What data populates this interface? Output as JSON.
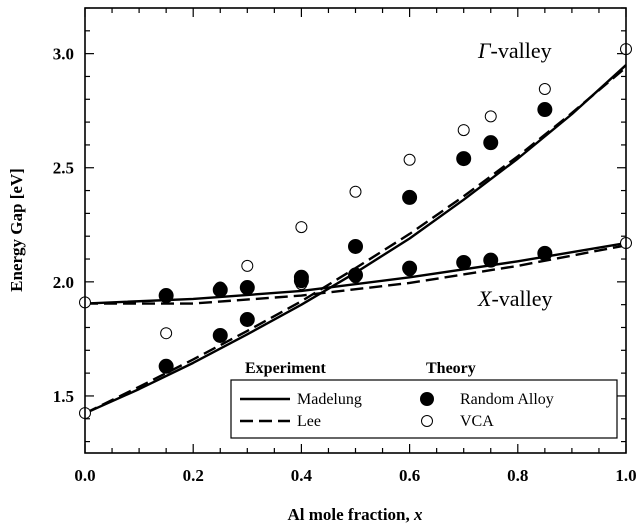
{
  "chart_data": {
    "type": "scatter",
    "xlabel_main": "Al mole fraction, ",
    "xlabel_var": "x",
    "ylabel": "Energy Gap [eV]",
    "xlim": [
      0.0,
      1.0
    ],
    "ylim": [
      1.25,
      3.2
    ],
    "xticks": [
      "0.0",
      "0.2",
      "0.4",
      "0.6",
      "0.8",
      "1.0"
    ],
    "yticks": [
      "1.5",
      "2.0",
      "2.5",
      "3.0"
    ],
    "annotations": {
      "gamma_symbol": "Γ",
      "gamma_text": "-valley",
      "x_symbol": "X",
      "x_text": "-valley"
    },
    "legend": {
      "experiment_header": "Experiment",
      "theory_header": "Theory",
      "madelung": "Madelung",
      "lee": "Lee",
      "random_alloy": "Random Alloy",
      "vca": "VCA"
    },
    "series": [
      {
        "name": "Madelung",
        "style": "solid",
        "curves": [
          {
            "valley": "Gamma",
            "x": [
              0,
              0.1,
              0.2,
              0.3,
              0.4,
              0.5,
              0.6,
              0.7,
              0.8,
              0.9,
              1.0
            ],
            "y": [
              1.424,
              1.53,
              1.645,
              1.77,
              1.9,
              2.04,
              2.19,
              2.36,
              2.54,
              2.735,
              2.95
            ]
          },
          {
            "valley": "X",
            "x": [
              0,
              0.2,
              0.4,
              0.6,
              0.8,
              1.0
            ],
            "y": [
              1.905,
              1.925,
              1.96,
              2.02,
              2.09,
              2.17
            ]
          }
        ]
      },
      {
        "name": "Lee",
        "style": "dashed",
        "curves": [
          {
            "valley": "Gamma",
            "x": [
              0,
              0.1,
              0.2,
              0.3,
              0.4,
              0.5,
              0.6,
              0.7,
              0.8,
              0.9,
              1.0
            ],
            "y": [
              1.424,
              1.54,
              1.66,
              1.785,
              1.915,
              2.06,
              2.21,
              2.375,
              2.55,
              2.74,
              2.94
            ]
          },
          {
            "valley": "X",
            "x": [
              0,
              0.2,
              0.4,
              0.6,
              0.8,
              1.0
            ],
            "y": [
              1.905,
              1.905,
              1.94,
              1.995,
              2.07,
              2.16
            ]
          }
        ]
      },
      {
        "name": "Random Alloy",
        "marker": "filled-circle",
        "points": [
          {
            "x": 0.15,
            "y": 1.63
          },
          {
            "x": 0.25,
            "y": 1.765
          },
          {
            "x": 0.3,
            "y": 1.835
          },
          {
            "x": 0.4,
            "y": 2.02
          },
          {
            "x": 0.5,
            "y": 2.155
          },
          {
            "x": 0.6,
            "y": 2.37
          },
          {
            "x": 0.7,
            "y": 2.54
          },
          {
            "x": 0.75,
            "y": 2.61
          },
          {
            "x": 0.85,
            "y": 2.755
          },
          {
            "x": 0.15,
            "y": 1.94
          },
          {
            "x": 0.25,
            "y": 1.965
          },
          {
            "x": 0.3,
            "y": 1.975
          },
          {
            "x": 0.4,
            "y": 2.005
          },
          {
            "x": 0.5,
            "y": 2.03
          },
          {
            "x": 0.6,
            "y": 2.06
          },
          {
            "x": 0.7,
            "y": 2.085
          },
          {
            "x": 0.75,
            "y": 2.095
          },
          {
            "x": 0.85,
            "y": 2.125
          }
        ]
      },
      {
        "name": "VCA",
        "marker": "open-circle",
        "points": [
          {
            "x": 0.0,
            "y": 1.425
          },
          {
            "x": 0.0,
            "y": 1.91
          },
          {
            "x": 0.15,
            "y": 1.775
          },
          {
            "x": 0.25,
            "y": 1.975
          },
          {
            "x": 0.3,
            "y": 2.07
          },
          {
            "x": 0.4,
            "y": 2.24
          },
          {
            "x": 0.5,
            "y": 2.395
          },
          {
            "x": 0.6,
            "y": 2.535
          },
          {
            "x": 0.7,
            "y": 2.665
          },
          {
            "x": 0.75,
            "y": 2.725
          },
          {
            "x": 0.85,
            "y": 2.845
          },
          {
            "x": 1.0,
            "y": 3.02
          },
          {
            "x": 0.15,
            "y": 1.945
          },
          {
            "x": 0.25,
            "y": 1.96
          },
          {
            "x": 0.3,
            "y": 1.97
          },
          {
            "x": 0.4,
            "y": 1.99
          },
          {
            "x": 0.5,
            "y": 2.02
          },
          {
            "x": 0.6,
            "y": 2.05
          },
          {
            "x": 0.7,
            "y": 2.08
          },
          {
            "x": 0.75,
            "y": 2.09
          },
          {
            "x": 0.85,
            "y": 2.12
          },
          {
            "x": 1.0,
            "y": 2.17
          }
        ]
      }
    ]
  }
}
